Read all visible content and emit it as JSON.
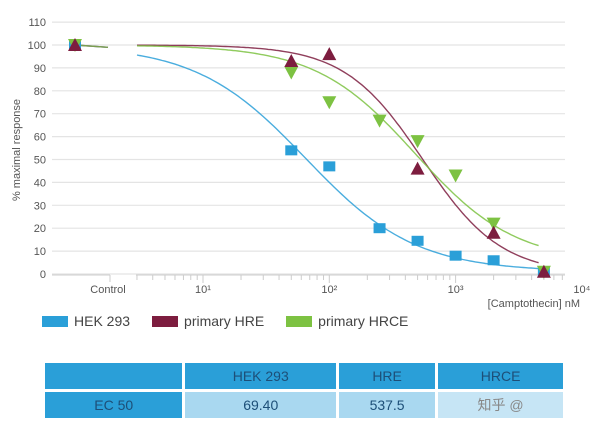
{
  "chart_data": {
    "type": "scatter",
    "title": "",
    "xlabel": "[Camptothecin] nM",
    "ylabel": "% maximal response",
    "xscale": "log",
    "xlim": [
      2,
      10000
    ],
    "ylim": [
      0,
      110
    ],
    "yticks": [
      0,
      10,
      20,
      30,
      40,
      50,
      60,
      70,
      80,
      90,
      100,
      110
    ],
    "xticks": [
      {
        "value": 10,
        "label": "10¹"
      },
      {
        "value": 100,
        "label": "10²"
      },
      {
        "value": 1000,
        "label": "10³"
      },
      {
        "value": 10000,
        "label": "10⁴"
      }
    ],
    "control_label": "Control",
    "grid": true,
    "legend_position": "bottom-left",
    "series": [
      {
        "name": "HEK 293",
        "color": "#2a9fd8",
        "marker": "square",
        "control": 100,
        "x": [
          50,
          100,
          250,
          500,
          1000,
          2000,
          5000
        ],
        "y": [
          54,
          47,
          20,
          14.5,
          8,
          6,
          1
        ],
        "fit": {
          "top": 100,
          "bottom": 1,
          "ec50": 65,
          "hill": 1.0,
          "control_line": [
            100,
            99
          ]
        }
      },
      {
        "name": "primary HRE",
        "color": "#7d1d3f",
        "marker": "triangle-up",
        "control": 100,
        "x": [
          50,
          100,
          500,
          2000,
          5000
        ],
        "y": [
          93,
          96,
          46,
          18,
          1
        ],
        "fit": {
          "top": 100,
          "bottom": 0,
          "ec50": 550,
          "hill": 1.4,
          "control_line": [
            100,
            99
          ]
        }
      },
      {
        "name": "primary HRCE",
        "color": "#7dc242",
        "marker": "triangle-down",
        "control": 100,
        "x": [
          50,
          100,
          250,
          500,
          1000,
          2000,
          5000
        ],
        "y": [
          88,
          75,
          67,
          58,
          43,
          22,
          1
        ],
        "fit": {
          "top": 100,
          "bottom": 5,
          "ec50": 480,
          "hill": 1.1,
          "control_line": [
            100,
            99
          ]
        }
      }
    ]
  },
  "table": {
    "headers": [
      "",
      "HEK 293",
      "HRE",
      "HRCE"
    ],
    "row": [
      "EC 50",
      "69.40",
      "537.5",
      "知乎 @"
    ]
  }
}
